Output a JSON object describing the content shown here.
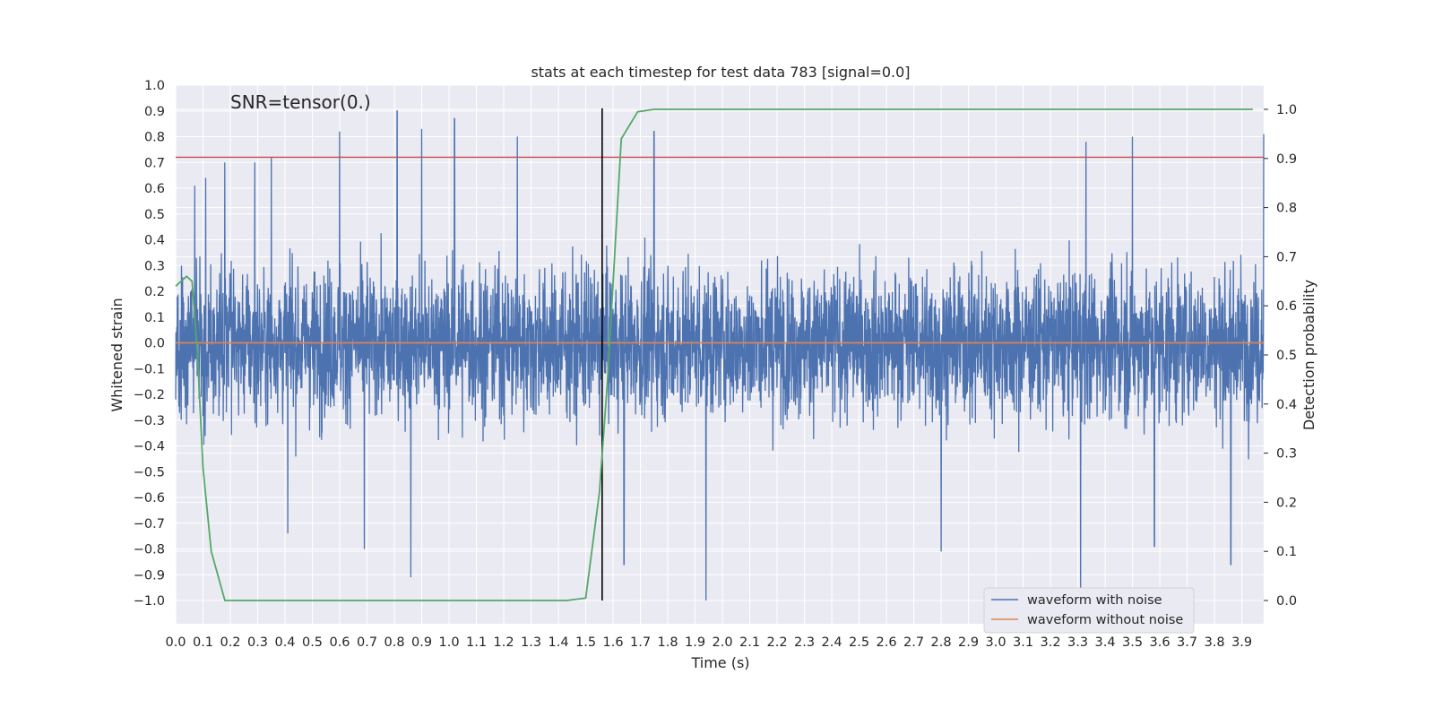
{
  "chart_data": {
    "type": "line",
    "title": "stats at each timestep for test data 783 [signal=0.0]",
    "annotation": "SNR=tensor(0.)",
    "xlabel": "Time (s)",
    "ylabel": "Whitened strain",
    "y2label": "Detection probability",
    "xlim": [
      0.0,
      3.98
    ],
    "ylim": [
      -1.09,
      1.0
    ],
    "y2lim": [
      -0.05,
      1.03
    ],
    "x_ticks": [
      "0.0",
      "0.1",
      "0.2",
      "0.3",
      "0.4",
      "0.5",
      "0.6",
      "0.7",
      "0.8",
      "0.9",
      "1.0",
      "1.1",
      "1.2",
      "1.3",
      "1.4",
      "1.5",
      "1.6",
      "1.7",
      "1.8",
      "1.9",
      "2.0",
      "2.1",
      "2.2",
      "2.3",
      "2.4",
      "2.5",
      "2.6",
      "2.7",
      "2.8",
      "2.9",
      "3.0",
      "3.1",
      "3.2",
      "3.3",
      "3.4",
      "3.5",
      "3.6",
      "3.7",
      "3.8",
      "3.9"
    ],
    "y_ticks": [
      "1.0",
      "0.9",
      "0.8",
      "0.7",
      "0.6",
      "0.5",
      "0.4",
      "0.3",
      "0.2",
      "0.1",
      "0.0",
      "−0.1",
      "−0.2",
      "−0.3",
      "−0.4",
      "−0.5",
      "−0.6",
      "−0.7",
      "−0.8",
      "−0.9",
      "−1.0"
    ],
    "y2_ticks": [
      "1.0",
      "0.9",
      "0.8",
      "0.7",
      "0.6",
      "0.5",
      "0.4",
      "0.3",
      "0.2",
      "0.1",
      "0.0"
    ],
    "grid": true,
    "legend_position": "lower-right",
    "colors": {
      "noise": "#4c72b0",
      "clean": "#dd8452",
      "probability": "#55a868",
      "threshold": "#c44e52",
      "marker": "#000000",
      "background": "#eaeaf2"
    },
    "series": [
      {
        "name": "waveform with noise",
        "description_samples": "dense noise, amplitude mostly within ±0.5, spikes up to ~0.9 and down to ~-1.0",
        "spikes": [
          {
            "x": 0.07,
            "y": 0.61
          },
          {
            "x": 0.11,
            "y": 0.64
          },
          {
            "x": 0.18,
            "y": 0.7
          },
          {
            "x": 0.29,
            "y": 0.7
          },
          {
            "x": 0.35,
            "y": 0.72
          },
          {
            "x": 0.6,
            "y": 0.82
          },
          {
            "x": 0.81,
            "y": 0.9
          },
          {
            "x": 0.9,
            "y": 0.83
          },
          {
            "x": 1.02,
            "y": 0.87
          },
          {
            "x": 1.25,
            "y": 0.8
          },
          {
            "x": 1.75,
            "y": 0.82
          },
          {
            "x": 3.33,
            "y": 0.78
          },
          {
            "x": 3.5,
            "y": 0.8
          },
          {
            "x": 3.98,
            "y": 0.81
          },
          {
            "x": 0.41,
            "y": -0.74
          },
          {
            "x": 0.69,
            "y": -0.8
          },
          {
            "x": 0.86,
            "y": -0.91
          },
          {
            "x": 1.64,
            "y": -0.86
          },
          {
            "x": 1.94,
            "y": -1.0
          },
          {
            "x": 2.8,
            "y": -0.81
          },
          {
            "x": 3.31,
            "y": -0.97
          },
          {
            "x": 3.58,
            "y": -0.79
          },
          {
            "x": 3.86,
            "y": -0.86
          }
        ]
      },
      {
        "name": "waveform without noise",
        "x": [
          0.0,
          3.98
        ],
        "y": [
          0.0,
          0.0
        ]
      },
      {
        "name": "",
        "axis": "right",
        "x": [
          0.0,
          0.04,
          0.06,
          0.08,
          0.1,
          0.13,
          0.18,
          0.2,
          1.43,
          1.5,
          1.55,
          1.58,
          1.63,
          1.69,
          1.75,
          3.94
        ],
        "y": [
          0.64,
          0.66,
          0.65,
          0.5,
          0.27,
          0.1,
          0.0,
          0.0,
          0.0,
          0.005,
          0.22,
          0.45,
          0.94,
          0.995,
          1.0,
          1.0
        ]
      }
    ],
    "threshold_line": {
      "axis": "left",
      "y": 0.72
    },
    "vertical_marker": {
      "x": 1.56,
      "y_from": -1.0,
      "y_to": 0.91
    }
  }
}
